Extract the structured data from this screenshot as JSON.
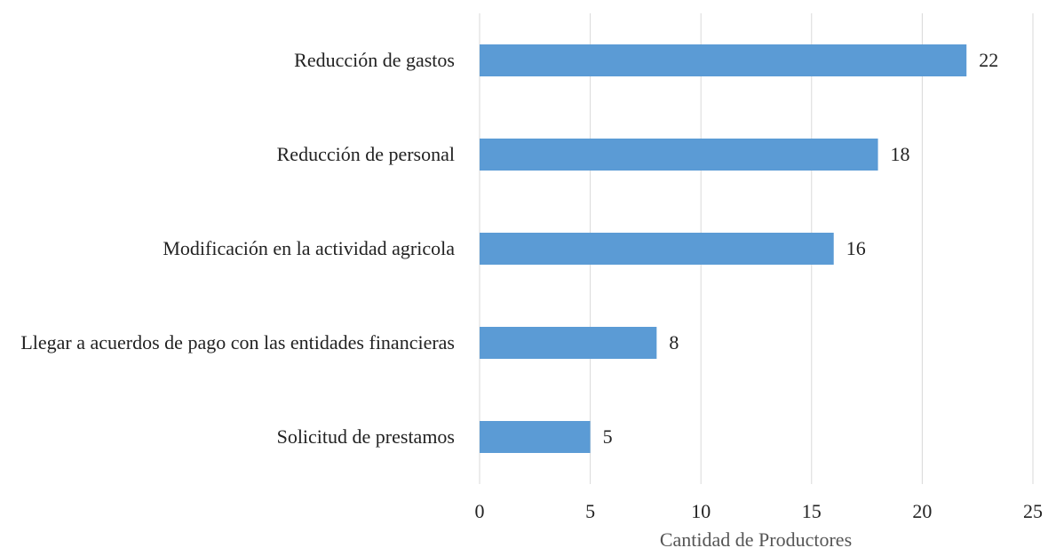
{
  "chart_data": {
    "type": "barh",
    "categories": [
      "Reducción de gastos",
      "Reducción de personal",
      "Modificación en la actividad agricola",
      "Llegar a acuerdos de pago con las entidades financieras",
      "Solicitud de prestamos"
    ],
    "values": [
      22,
      18,
      16,
      8,
      5
    ],
    "color": "#5b9bd5",
    "xlabel": "Cantidad de Productores",
    "xlim": [
      0,
      25
    ],
    "xticks": [
      0,
      5,
      10,
      15,
      20,
      25
    ],
    "grid": true
  }
}
